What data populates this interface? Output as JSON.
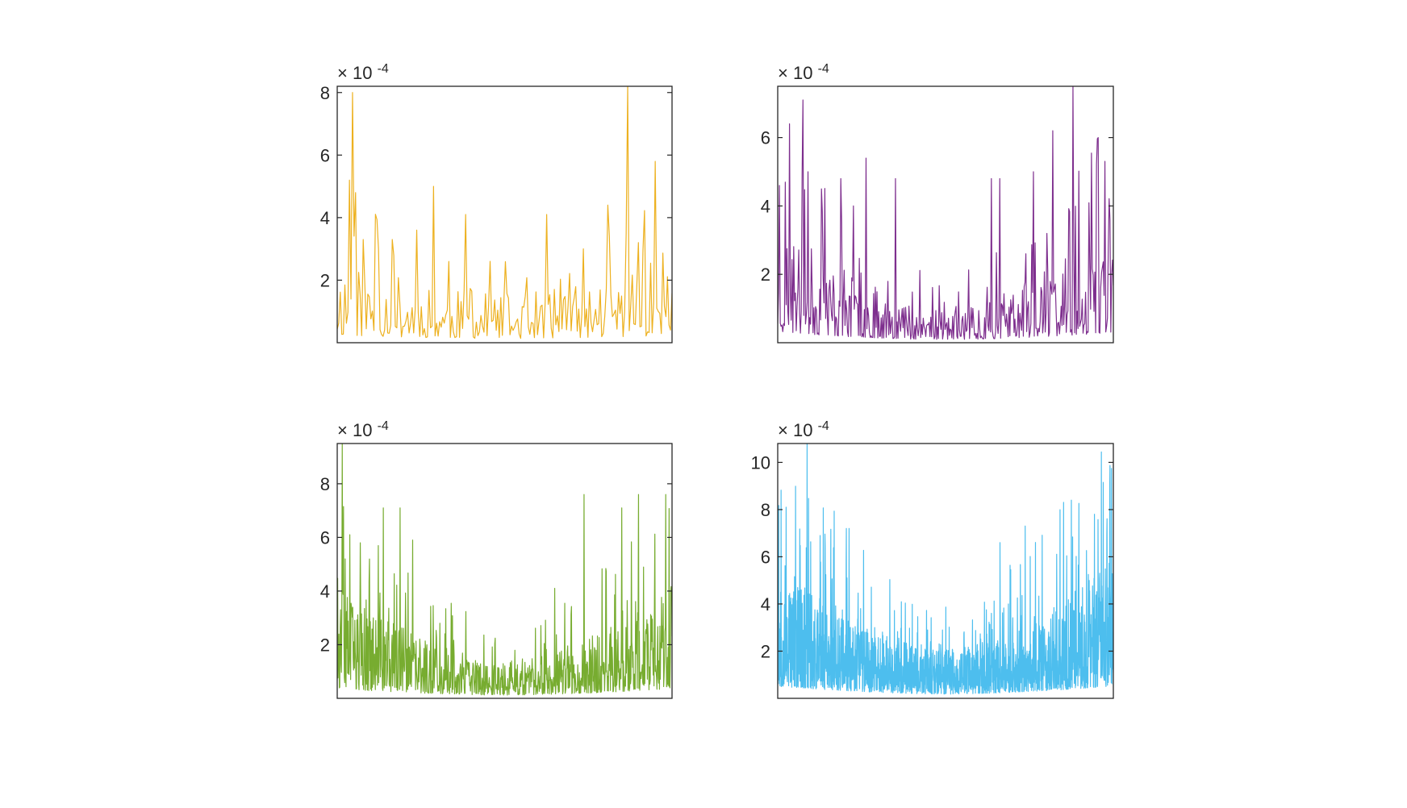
{
  "chart_data": [
    {
      "type": "line",
      "name_hint": "top-left",
      "color": "#EDB120",
      "exponent_label": {
        "times": "×",
        "base": "10",
        "exp": "-4"
      },
      "ylim": [
        0.0,
        8.2
      ],
      "yticks": [
        2,
        4,
        6,
        8
      ],
      "ytick_labels": [
        "2",
        "4",
        "6",
        "8"
      ],
      "x_range": [
        0,
        220
      ],
      "n_points": 220,
      "profile": "u-shape",
      "base_level": 0.9,
      "edge_level": 1.6,
      "spikes": [
        {
          "x": 8,
          "y": 5.2
        },
        {
          "x": 10,
          "y": 8.0
        },
        {
          "x": 12,
          "y": 4.8
        },
        {
          "x": 17,
          "y": 3.3
        },
        {
          "x": 27,
          "y": 3.0
        },
        {
          "x": 36,
          "y": 3.3
        },
        {
          "x": 52,
          "y": 3.6
        },
        {
          "x": 63,
          "y": 5.0
        },
        {
          "x": 73,
          "y": 2.6
        },
        {
          "x": 84,
          "y": 4.1
        },
        {
          "x": 138,
          "y": 4.1
        },
        {
          "x": 162,
          "y": 3.0
        },
        {
          "x": 178,
          "y": 4.4
        },
        {
          "x": 191,
          "y": 8.2
        },
        {
          "x": 198,
          "y": 3.2
        },
        {
          "x": 209,
          "y": 5.8
        }
      ],
      "seed": 11
    },
    {
      "type": "line",
      "name_hint": "top-right",
      "color": "#7E2F8E",
      "exponent_label": {
        "times": "×",
        "base": "10",
        "exp": "-4"
      },
      "ylim": [
        0.0,
        7.5
      ],
      "yticks": [
        2,
        4,
        6
      ],
      "ytick_labels": [
        "2",
        "4",
        "6"
      ],
      "x_range": [
        0,
        400
      ],
      "n_points": 400,
      "profile": "u-shape",
      "base_level": 0.6,
      "edge_level": 2.0,
      "spikes": [
        {
          "x": 2,
          "y": 4.6
        },
        {
          "x": 14,
          "y": 6.4
        },
        {
          "x": 30,
          "y": 7.1
        },
        {
          "x": 36,
          "y": 5.0
        },
        {
          "x": 52,
          "y": 4.5
        },
        {
          "x": 75,
          "y": 4.8
        },
        {
          "x": 90,
          "y": 4.0
        },
        {
          "x": 105,
          "y": 5.4
        },
        {
          "x": 140,
          "y": 4.8
        },
        {
          "x": 255,
          "y": 4.8
        },
        {
          "x": 265,
          "y": 4.8
        },
        {
          "x": 305,
          "y": 5.0
        },
        {
          "x": 328,
          "y": 6.2
        },
        {
          "x": 352,
          "y": 7.5
        },
        {
          "x": 382,
          "y": 6.0
        },
        {
          "x": 396,
          "y": 3.6
        }
      ],
      "seed": 23
    },
    {
      "type": "line",
      "name_hint": "bottom-left",
      "color": "#77AC30",
      "exponent_label": {
        "times": "×",
        "base": "10",
        "exp": "-4"
      },
      "ylim": [
        0.0,
        9.5
      ],
      "yticks": [
        2,
        4,
        6,
        8
      ],
      "ytick_labels": [
        "2",
        "4",
        "6",
        "8"
      ],
      "x_range": [
        0,
        800
      ],
      "n_points": 800,
      "profile": "u-shape",
      "base_level": 0.8,
      "edge_level": 2.4,
      "spikes": [
        {
          "x": 12,
          "y": 9.5
        },
        {
          "x": 30,
          "y": 6.1
        },
        {
          "x": 55,
          "y": 5.8
        },
        {
          "x": 110,
          "y": 7.1
        },
        {
          "x": 150,
          "y": 7.1
        },
        {
          "x": 180,
          "y": 5.9
        },
        {
          "x": 520,
          "y": 4.1
        },
        {
          "x": 590,
          "y": 7.6
        },
        {
          "x": 680,
          "y": 7.1
        },
        {
          "x": 720,
          "y": 7.6
        },
        {
          "x": 785,
          "y": 7.6
        }
      ],
      "seed": 37
    },
    {
      "type": "line",
      "name_hint": "bottom-right",
      "color": "#4DBEEE",
      "exponent_label": {
        "times": "×",
        "base": "10",
        "exp": "-4"
      },
      "ylim": [
        0.0,
        10.8
      ],
      "yticks": [
        2,
        4,
        6,
        8,
        10
      ],
      "ytick_labels": [
        "2",
        "4",
        "6",
        "8",
        "10"
      ],
      "x_range": [
        0,
        1600
      ],
      "n_points": 1600,
      "profile": "u-shape",
      "base_level": 1.2,
      "edge_level": 3.4,
      "spikes": [
        {
          "x": 40,
          "y": 8.1
        },
        {
          "x": 140,
          "y": 10.8
        },
        {
          "x": 340,
          "y": 7.2
        },
        {
          "x": 1060,
          "y": 6.6
        },
        {
          "x": 1180,
          "y": 7.3
        },
        {
          "x": 1400,
          "y": 8.4
        },
        {
          "x": 1510,
          "y": 7.8
        }
      ],
      "seed": 53
    }
  ]
}
